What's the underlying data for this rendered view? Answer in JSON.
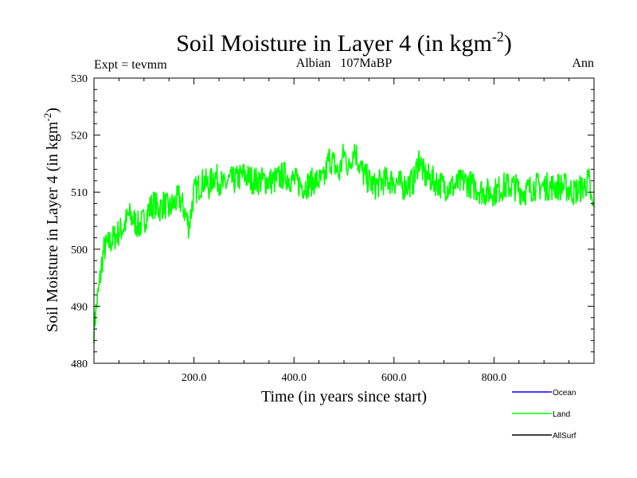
{
  "chart_data": {
    "type": "line",
    "title": "Soil Moisture in Layer 4 (in kgm",
    "title_sup": "-2",
    "title_close": ")",
    "subtitle_left": "Expt = tevmm",
    "subtitle_center": "Albian   107MaBP",
    "subtitle_right": "Ann",
    "xlabel": "Time (in years since start)",
    "ylabel": "Soil Moisture in Layer 4 (in kgm",
    "ylabel_sup": "-2",
    "ylabel_close": ")",
    "xlim": [
      0,
      1000
    ],
    "ylim": [
      480,
      530
    ],
    "xticks": [
      200,
      400,
      600,
      800
    ],
    "xtick_labels": [
      "200.0",
      "400.0",
      "600.0",
      "800.0"
    ],
    "yticks": [
      480,
      490,
      500,
      510,
      520,
      530
    ],
    "ytick_labels": [
      "480",
      "490",
      "500",
      "510",
      "520",
      "530"
    ],
    "grid": false,
    "legend_position": "bottom-right",
    "series": [
      {
        "name": "Ocean",
        "color": "#0000ff",
        "values": []
      },
      {
        "name": "Land",
        "color": "#00ff00",
        "x": [
          0,
          5,
          10,
          15,
          20,
          30,
          40,
          50,
          60,
          70,
          80,
          90,
          100,
          110,
          120,
          130,
          140,
          150,
          160,
          170,
          180,
          190,
          200,
          210,
          220,
          230,
          240,
          250,
          260,
          270,
          280,
          300,
          320,
          340,
          360,
          380,
          400,
          420,
          440,
          460,
          470,
          480,
          490,
          500,
          510,
          520,
          530,
          540,
          550,
          560,
          580,
          600,
          620,
          640,
          650,
          660,
          680,
          700,
          720,
          740,
          760,
          780,
          800,
          820,
          840,
          860,
          880,
          900,
          920,
          940,
          960,
          980,
          990,
          995,
          1000
        ],
        "values": [
          486,
          490,
          493,
          497,
          500,
          501,
          502,
          503,
          504,
          506,
          505,
          504,
          505,
          507,
          508,
          507,
          508,
          507,
          508,
          509,
          507,
          504,
          510,
          511,
          512,
          511,
          513,
          512,
          511,
          512,
          512,
          513,
          512,
          512,
          512,
          513,
          512,
          511,
          512,
          512,
          516,
          515,
          513,
          517,
          514,
          518,
          515,
          513,
          512,
          511,
          512,
          512,
          511,
          512,
          516,
          513,
          512,
          511,
          511,
          512,
          511,
          510,
          510,
          511,
          511,
          510,
          511,
          511,
          511,
          511,
          510,
          511,
          512,
          508,
          507
        ]
      },
      {
        "name": "AllSurf",
        "color": "#000000",
        "values": []
      }
    ]
  }
}
